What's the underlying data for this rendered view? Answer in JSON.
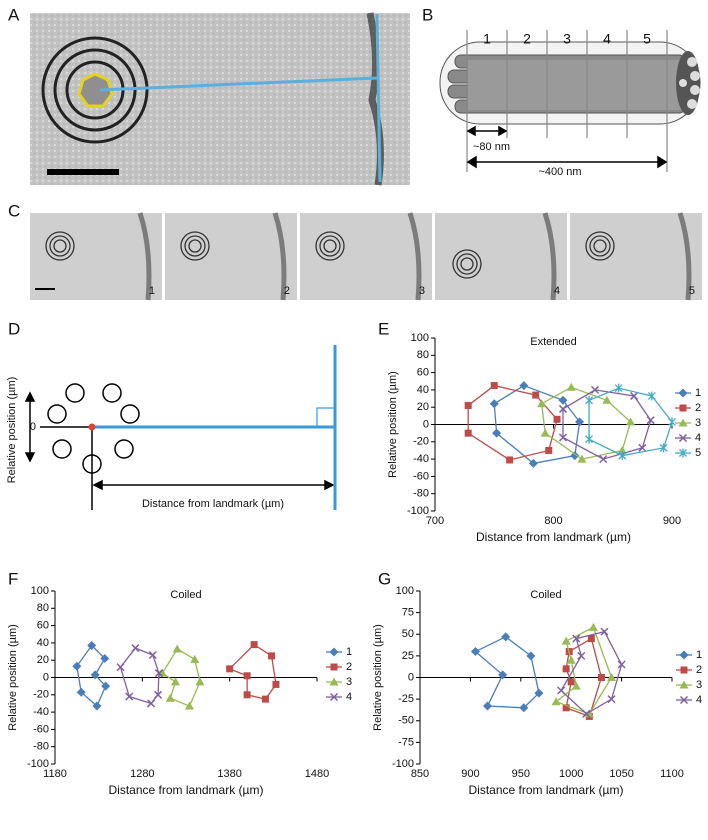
{
  "panel_labels": [
    "A",
    "B",
    "C",
    "D",
    "E",
    "F",
    "G"
  ],
  "diagram_b": {
    "segments": [
      "1",
      "2",
      "3",
      "4",
      "5"
    ],
    "short_length": "~80 nm",
    "total_length": "~400 nm"
  },
  "strip_c": {
    "frames": [
      "1",
      "2",
      "3",
      "4",
      "5"
    ]
  },
  "diagram_d": {
    "y_label": "Relative position (µm)",
    "origin": "0",
    "x_label": "Distance from landmark (µm)"
  },
  "chart_data": [
    {
      "type": "line",
      "title": "Extended",
      "x_label": "Distance from landmark (µm)",
      "y_label": "Relative position (µm)",
      "xlim": [
        700,
        900
      ],
      "xticks": [
        700,
        800,
        900
      ],
      "ylim": [
        -100,
        100
      ],
      "yticks": [
        -100,
        -80,
        -60,
        -40,
        -20,
        0,
        20,
        40,
        60,
        80,
        100
      ],
      "series": [
        {
          "name": "1",
          "color": "#4a7ebb",
          "marker": "diamond",
          "x": [
            775,
            750,
            752,
            783,
            818,
            822,
            808
          ],
          "values": [
            45,
            24,
            -10,
            -45,
            -36,
            3,
            28
          ]
        },
        {
          "name": "2",
          "color": "#be4b48",
          "marker": "square",
          "x": [
            750,
            728,
            728,
            763,
            796,
            803,
            785
          ],
          "values": [
            45,
            22,
            -10,
            -41,
            -30,
            6,
            34
          ]
        },
        {
          "name": "3",
          "color": "#98b954",
          "marker": "triangle",
          "x": [
            815,
            790,
            793,
            824,
            858,
            865,
            845
          ],
          "values": [
            43,
            24,
            -10,
            -40,
            -30,
            3,
            28
          ]
        },
        {
          "name": "4",
          "color": "#7d60a0",
          "marker": "x",
          "x": [
            835,
            808,
            808,
            842,
            875,
            882,
            868
          ],
          "values": [
            40,
            18,
            -15,
            -40,
            -27,
            5,
            33
          ]
        },
        {
          "name": "5",
          "color": "#46aac5",
          "marker": "star",
          "x": [
            855,
            830,
            830,
            858,
            893,
            900,
            883
          ],
          "values": [
            42,
            28,
            -17,
            -36,
            -27,
            3,
            33
          ]
        }
      ]
    },
    {
      "type": "line",
      "title": "Coiled",
      "x_label": "Distance from landmark (µm)",
      "y_label": "Relative position (µm)",
      "xlim": [
        1180,
        1480
      ],
      "xticks": [
        1180,
        1280,
        1380,
        1480
      ],
      "ylim": [
        -100,
        100
      ],
      "yticks": [
        -100,
        -80,
        -60,
        -40,
        -20,
        0,
        20,
        40,
        60,
        80,
        100
      ],
      "series": [
        {
          "name": "1",
          "color": "#4a7ebb",
          "marker": "diamond",
          "x": [
            1222,
            1237,
            1226,
            1238,
            1228,
            1210,
            1205
          ],
          "values": [
            37,
            22,
            3,
            -10,
            -33,
            -17,
            13
          ]
        },
        {
          "name": "2",
          "color": "#be4b48",
          "marker": "square",
          "x": [
            1408,
            1428,
            1433,
            1421,
            1400,
            1400,
            1380
          ],
          "values": [
            38,
            25,
            -8,
            -25,
            -20,
            2,
            10
          ]
        },
        {
          "name": "3",
          "color": "#98b954",
          "marker": "triangle",
          "x": [
            1320,
            1340,
            1346,
            1334,
            1312,
            1318,
            1303
          ],
          "values": [
            33,
            21,
            -5,
            -33,
            -24,
            -5,
            5
          ]
        },
        {
          "name": "4",
          "color": "#7d60a0",
          "marker": "x",
          "x": [
            1272,
            1292,
            1299,
            1298,
            1290,
            1265,
            1255
          ],
          "values": [
            34,
            26,
            5,
            -20,
            -30,
            -22,
            12
          ]
        }
      ]
    },
    {
      "type": "line",
      "title": "Coiled",
      "x_label": "Distance from landmark (µm)",
      "y_label": "Relative position (µm)",
      "xlim": [
        850,
        1100
      ],
      "xticks": [
        850,
        900,
        950,
        1000,
        1050,
        1100
      ],
      "ylim": [
        -100,
        100
      ],
      "yticks": [
        -100,
        -75,
        -50,
        -25,
        0,
        25,
        50,
        75,
        100
      ],
      "series": [
        {
          "name": "1",
          "color": "#4a7ebb",
          "marker": "diamond",
          "x": [
            905,
            935,
            960,
            968,
            953,
            917,
            932
          ],
          "values": [
            30,
            47,
            25,
            -18,
            -35,
            -33,
            3
          ]
        },
        {
          "name": "2",
          "color": "#be4b48",
          "marker": "square",
          "x": [
            998,
            1020,
            1030,
            1018,
            995,
            1000,
            995
          ],
          "values": [
            30,
            45,
            0,
            -45,
            -35,
            -5,
            10
          ]
        },
        {
          "name": "3",
          "color": "#98b954",
          "marker": "triangle",
          "x": [
            995,
            1022,
            1040,
            1018,
            985,
            1005,
            1000
          ],
          "values": [
            42,
            58,
            0,
            -42,
            -28,
            -10,
            20
          ]
        },
        {
          "name": "4",
          "color": "#7d60a0",
          "marker": "x",
          "x": [
            1005,
            1033,
            1050,
            1040,
            1015,
            990,
            1010
          ],
          "values": [
            45,
            53,
            15,
            -25,
            -42,
            -15,
            25
          ]
        }
      ]
    }
  ]
}
